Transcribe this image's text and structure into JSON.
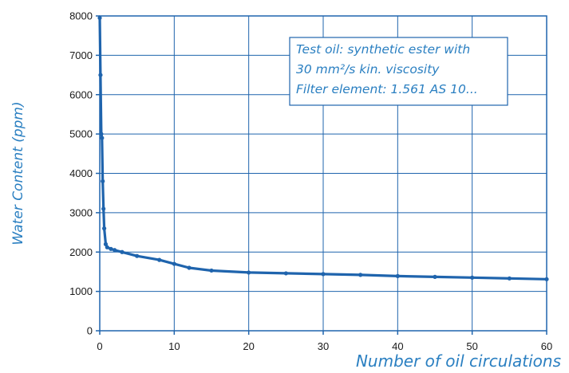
{
  "chart_data": {
    "type": "line",
    "xlabel": "Number of oil circulations",
    "ylabel": "Water Content (ppm)",
    "xlim": [
      0,
      60
    ],
    "ylim": [
      0,
      8000
    ],
    "xticks": [
      0,
      10,
      20,
      30,
      40,
      50,
      60
    ],
    "yticks": [
      0,
      1000,
      2000,
      3000,
      4000,
      5000,
      6000,
      7000,
      8000
    ],
    "grid": true,
    "series": [
      {
        "name": "",
        "color": "#1f64ad",
        "x": [
          0,
          0.1,
          0.2,
          0.3,
          0.4,
          0.5,
          0.6,
          0.8,
          1,
          1.5,
          2,
          3,
          5,
          8,
          10,
          12,
          15,
          20,
          25,
          30,
          35,
          40,
          45,
          50,
          55,
          60
        ],
        "y": [
          7950,
          6500,
          5000,
          4900,
          3800,
          3100,
          2600,
          2200,
          2120,
          2080,
          2050,
          2000,
          1900,
          1800,
          1700,
          1600,
          1530,
          1480,
          1460,
          1440,
          1420,
          1390,
          1370,
          1350,
          1330,
          1310
        ]
      }
    ],
    "annotation": {
      "lines": [
        "Test oil: synthetic ester with",
        "30 mm²/s kin. viscosity",
        "Filter element: 1.561 AS 10..."
      ]
    }
  }
}
